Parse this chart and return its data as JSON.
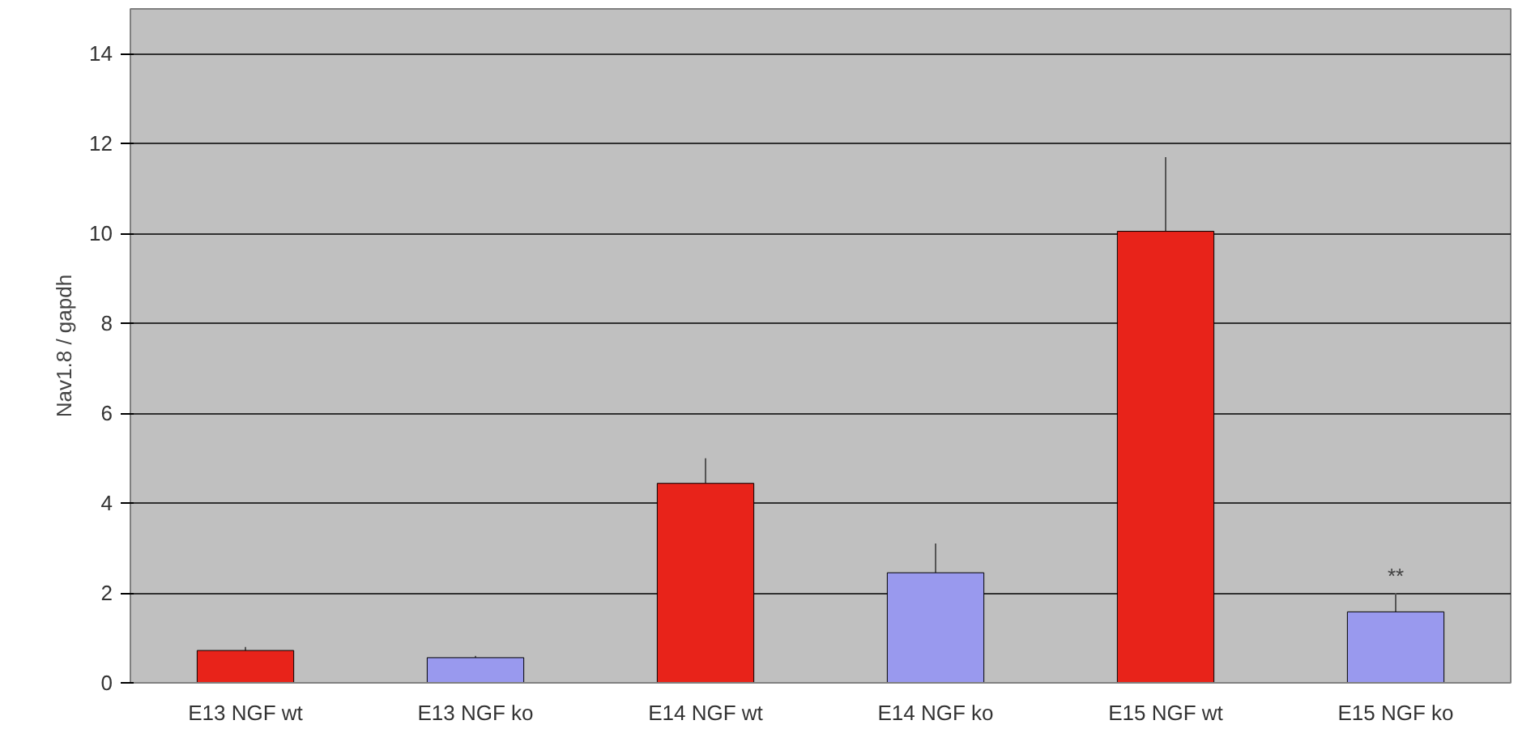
{
  "chart_data": {
    "type": "bar",
    "ylabel": "Nav1.8 / gapdh",
    "categories": [
      "E13 NGF wt",
      "E13 NGF ko",
      "E14 NGF wt",
      "E14 NGF ko",
      "E15 NGF wt",
      "E15 NGF ko"
    ],
    "values": [
      0.72,
      0.56,
      4.44,
      2.45,
      10.05,
      1.58
    ],
    "colors": [
      "#e8231a",
      "#9999ee",
      "#e8231a",
      "#9999ee",
      "#e8231a",
      "#9999ee"
    ],
    "errors": [
      [
        0.72,
        0.8
      ],
      [
        0.56,
        0.6
      ],
      [
        4.44,
        5.0
      ],
      [
        2.45,
        3.1
      ],
      [
        10.05,
        11.7
      ],
      [
        1.58,
        2.0
      ]
    ],
    "annotations": [
      "**"
    ],
    "ylim": [
      0,
      15
    ],
    "yticks": [
      0,
      2,
      4,
      6,
      8,
      10,
      12,
      14
    ],
    "grid": "y"
  }
}
